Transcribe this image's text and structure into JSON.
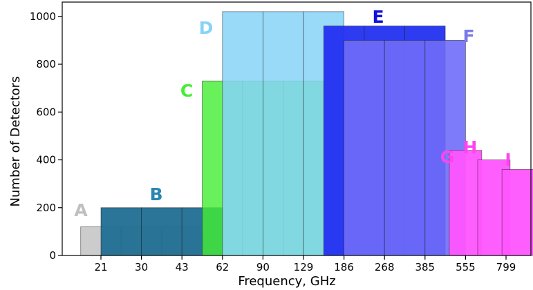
{
  "chart_data": {
    "type": "bar",
    "title": "",
    "xlabel": "Frequency, GHz",
    "ylabel": "Number of Detectors",
    "ylim": [
      0,
      1060
    ],
    "yticks": [
      0,
      200,
      400,
      600,
      800,
      1000
    ],
    "xticks": [
      "21",
      "30",
      "43",
      "62",
      "90",
      "129",
      "186",
      "268",
      "385",
      "555",
      "799"
    ],
    "grid": false,
    "series": [
      {
        "name": "A",
        "color": "#cccccc",
        "opacity": 1.0,
        "values": [
          120,
          120,
          120
        ]
      },
      {
        "name": "B",
        "color": "#1f6e92",
        "opacity": 0.95,
        "values": [
          200,
          200,
          200
        ]
      },
      {
        "name": "C",
        "color": "#44ee33",
        "opacity": 0.8,
        "values": [
          730,
          730,
          730
        ]
      },
      {
        "name": "D",
        "color": "#87d3f8",
        "opacity": 0.85,
        "values": [
          1020,
          1020,
          1020
        ]
      },
      {
        "name": "E",
        "color": "#2230f0",
        "opacity": 0.95,
        "values": [
          960,
          960,
          960
        ]
      },
      {
        "name": "F",
        "color": "#6f6df8",
        "opacity": 0.9,
        "values": [
          900,
          900,
          900
        ]
      },
      {
        "name": "G",
        "color": "#ff55ff",
        "opacity": 0.95,
        "values": [
          440
        ]
      },
      {
        "name": "H",
        "color": "#ff55ff",
        "opacity": 0.95,
        "values": [
          400
        ]
      },
      {
        "name": "I",
        "color": "#ff55ff",
        "opacity": 0.95,
        "values": [
          360
        ]
      }
    ],
    "group_labels": [
      {
        "text": "A",
        "color": "#c0c0c0"
      },
      {
        "text": "B",
        "color": "#2a86b0"
      },
      {
        "text": "C",
        "color": "#44ee33"
      },
      {
        "text": "D",
        "color": "#87d3f8"
      },
      {
        "text": "E",
        "color": "#1010e0"
      },
      {
        "text": "F",
        "color": "#7a7ae8"
      },
      {
        "text": "G",
        "color": "#ff44ee"
      },
      {
        "text": "H",
        "color": "#ff44ee"
      },
      {
        "text": "I",
        "color": "#ff44ee"
      }
    ]
  }
}
